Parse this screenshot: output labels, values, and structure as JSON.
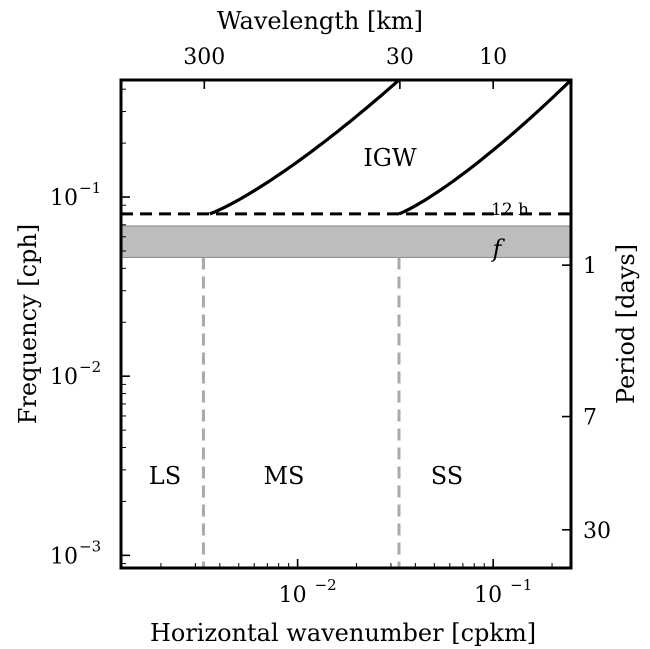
{
  "chart_data": {
    "type": "line",
    "title": "",
    "xlabel": "Horizontal wavenumber [cpkm]",
    "ylabel": "Frequency [cph]",
    "top_xlabel": "Wavelength [km]",
    "right_ylabel": "Period [days]",
    "xscale": "log",
    "yscale": "log",
    "xlim": [
      0.00125,
      0.25
    ],
    "ylim": [
      0.00085,
      0.45
    ],
    "grid": false,
    "x_ticks": [
      {
        "value": 0.01,
        "label": "10",
        "exp": "−2"
      },
      {
        "value": 0.1,
        "label": "10",
        "exp": "−1"
      }
    ],
    "y_ticks": [
      {
        "value": 0.001,
        "label": "10",
        "exp": "−3"
      },
      {
        "value": 0.01,
        "label": "10",
        "exp": "−2"
      },
      {
        "value": 0.1,
        "label": "10",
        "exp": "−1"
      }
    ],
    "top_ticks": [
      {
        "value": 300,
        "label": "300"
      },
      {
        "value": 30,
        "label": "30"
      },
      {
        "value": 10,
        "label": "10"
      }
    ],
    "right_ticks": [
      {
        "value": 1,
        "label": "1"
      },
      {
        "value": 7,
        "label": "7"
      },
      {
        "value": 30,
        "label": "30"
      }
    ],
    "series": [
      {
        "style": "solid",
        "color": "#000000",
        "x": [
          0.00355,
          0.033
        ],
        "y": [
          0.0805,
          0.45
        ]
      },
      {
        "style": "solid",
        "color": "#000000",
        "x": [
          0.033,
          0.25
        ],
        "y": [
          0.0805,
          0.45
        ]
      }
    ],
    "hlines": [
      {
        "y": 0.0805,
        "style": "dashed",
        "color": "#000000",
        "label": "12 h"
      }
    ],
    "bands": [
      {
        "y": [
          0.046,
          0.069
        ],
        "color": "#bdbdbd",
        "label": "f"
      }
    ],
    "vlines": [
      {
        "x": 0.0033,
        "y_max": 0.046,
        "style": "dashed",
        "color": "#aaaaaa"
      },
      {
        "x": 0.033,
        "y_max": 0.046,
        "style": "dashed",
        "color": "#aaaaaa"
      }
    ],
    "annotations": [
      {
        "text": "IGW",
        "x": 0.028,
        "y": 0.155
      },
      {
        "text": "LS",
        "x": 0.00215,
        "y": 0.003
      },
      {
        "text": "MS",
        "x": 0.0115,
        "y": 0.003
      },
      {
        "text": "SS",
        "x": 0.085,
        "y": 0.003
      }
    ]
  }
}
